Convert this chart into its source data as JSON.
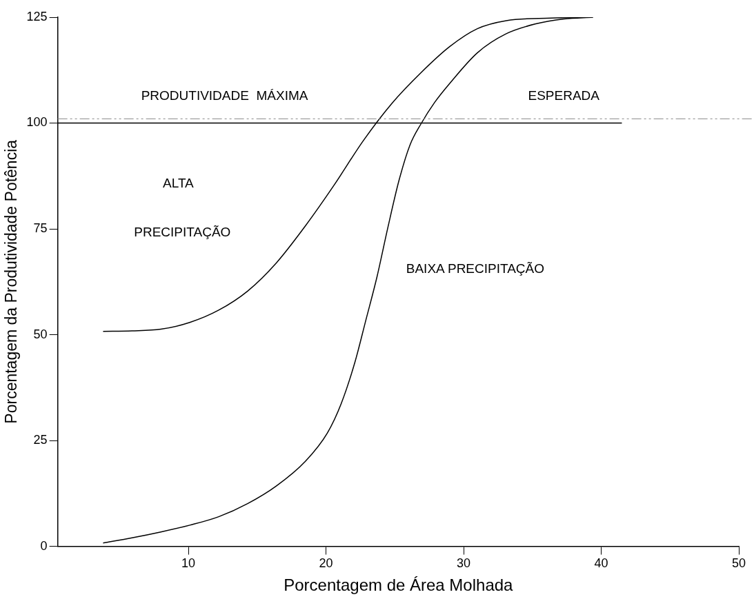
{
  "chart_data": {
    "type": "line",
    "xlabel": "Porcentagem de Área Molhada",
    "ylabel": "Porcentagem da Produtividade Potência",
    "xlim": [
      0.5,
      50
    ],
    "xticks": [
      10,
      20,
      30,
      40,
      50
    ],
    "ylim": [
      0,
      125
    ],
    "yticks": [
      0,
      25,
      50,
      75,
      100,
      125
    ],
    "grid": false,
    "legend": false,
    "marker": "none",
    "line_style": "solid",
    "series": [
      {
        "color": "#000000",
        "x": [
          3.8,
          5.9,
          8.0,
          10.1,
          12.2,
          14.3,
          16.4,
          18.5,
          20.6,
          22.7,
          24.8,
          26.9,
          29.0,
          31.0,
          33.1,
          36.3,
          39.4
        ],
        "values": [
          50.8,
          50.9,
          51.3,
          52.9,
          55.8,
          60.3,
          67,
          75.7,
          85.4,
          95.8,
          104.7,
          111.9,
          118.1,
          122.3,
          124.2,
          124.8,
          125
        ]
      },
      {
        "color": "#000000",
        "x": [
          3.8,
          5.9,
          8.0,
          10.1,
          12.2,
          14.3,
          16.4,
          18.5,
          20.1,
          21.1,
          22.1,
          22.9,
          23.7,
          24.5,
          25.3,
          26.1,
          26.9,
          27.9,
          29.0,
          31.0,
          33.1,
          35.2,
          37.3,
          39.4
        ],
        "values": [
          0.8,
          2.0,
          3.4,
          5.0,
          7.0,
          10.1,
          14.3,
          20.1,
          26.8,
          33.7,
          43.5,
          53.5,
          63.6,
          75.4,
          86.4,
          94.8,
          99.8,
          104.9,
          109.4,
          116.6,
          121.1,
          123.4,
          124.6,
          125
        ]
      },
      {
        "color": "#000000",
        "x": [
          0.5,
          41.5
        ],
        "values": [
          100,
          100
        ]
      }
    ],
    "ref_lines": [
      {
        "axis": "y",
        "value": 101,
        "color": "#888888",
        "line_style": "dashed"
      }
    ],
    "annotations": [
      "PRODUTIVIDADE  MÁXIMA",
      "ESPERADA",
      "ALTA",
      "PRECIPITAÇÃO",
      "BAIXA PRECIPITAÇÃO"
    ]
  }
}
